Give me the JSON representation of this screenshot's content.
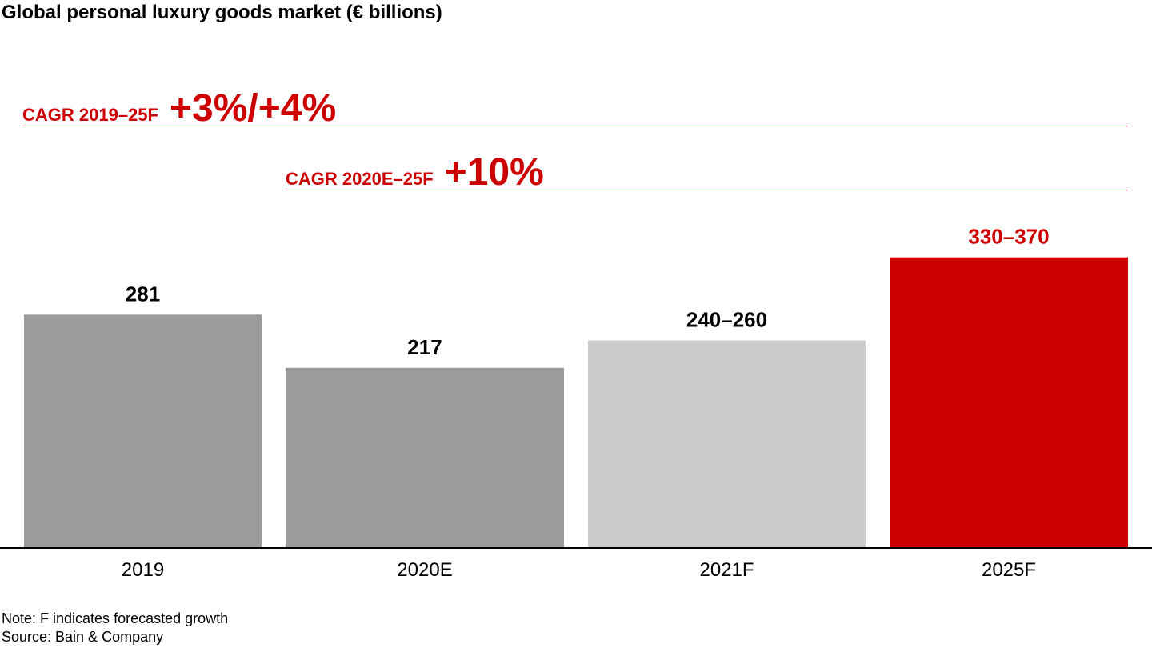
{
  "chart_data": {
    "type": "bar",
    "title": "Global personal luxury goods market (€ billions)",
    "xlabel": "",
    "ylabel": "",
    "ylim": [
      0,
      350
    ],
    "grid": false,
    "categories": [
      "2019",
      "2020E",
      "2021F",
      "2025F"
    ],
    "values": [
      281,
      217,
      250,
      350
    ],
    "ranges": [
      null,
      null,
      [
        240,
        260
      ],
      [
        330,
        370
      ]
    ],
    "value_labels": [
      "281",
      "217",
      "240–260",
      "330–370"
    ],
    "bar_colors": [
      "#9b9b9b",
      "#9b9b9b",
      "#cccccc",
      "#cc0000"
    ],
    "label_colors": [
      "#000000",
      "#000000",
      "#000000",
      "#cc0000"
    ],
    "annotations": [
      {
        "label": "CAGR 2019–25F",
        "value": "+3%/+4%",
        "color": "#cc0000"
      },
      {
        "label": "CAGR 2020E–25F",
        "value": "+10%",
        "color": "#cc0000"
      }
    ]
  },
  "notes": {
    "note": "Note: F indicates forecasted growth",
    "source": "Source: Bain & Company"
  }
}
